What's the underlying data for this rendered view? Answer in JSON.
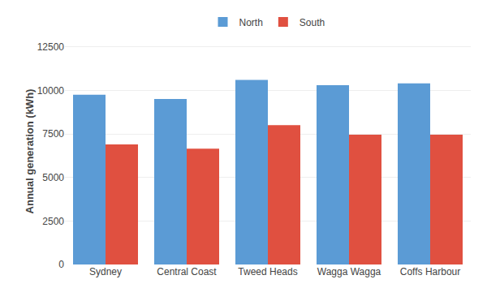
{
  "chart_data": {
    "type": "bar",
    "categories": [
      "Sydney",
      "Central Coast",
      "Tweed Heads",
      "Wagga Wagga",
      "Coffs Harbour"
    ],
    "series": [
      {
        "name": "North",
        "color": "#5b9bd5",
        "values": [
          9750,
          9500,
          10600,
          10300,
          10400
        ]
      },
      {
        "name": "South",
        "color": "#e05040",
        "values": [
          6900,
          6650,
          8000,
          7450,
          7450
        ]
      }
    ],
    "ylabel": "Annual generation (kWh)",
    "ylim": [
      0,
      13000
    ],
    "yticks": [
      0,
      2500,
      5000,
      7500,
      10000,
      12500
    ],
    "grid": true,
    "legend": "top"
  }
}
